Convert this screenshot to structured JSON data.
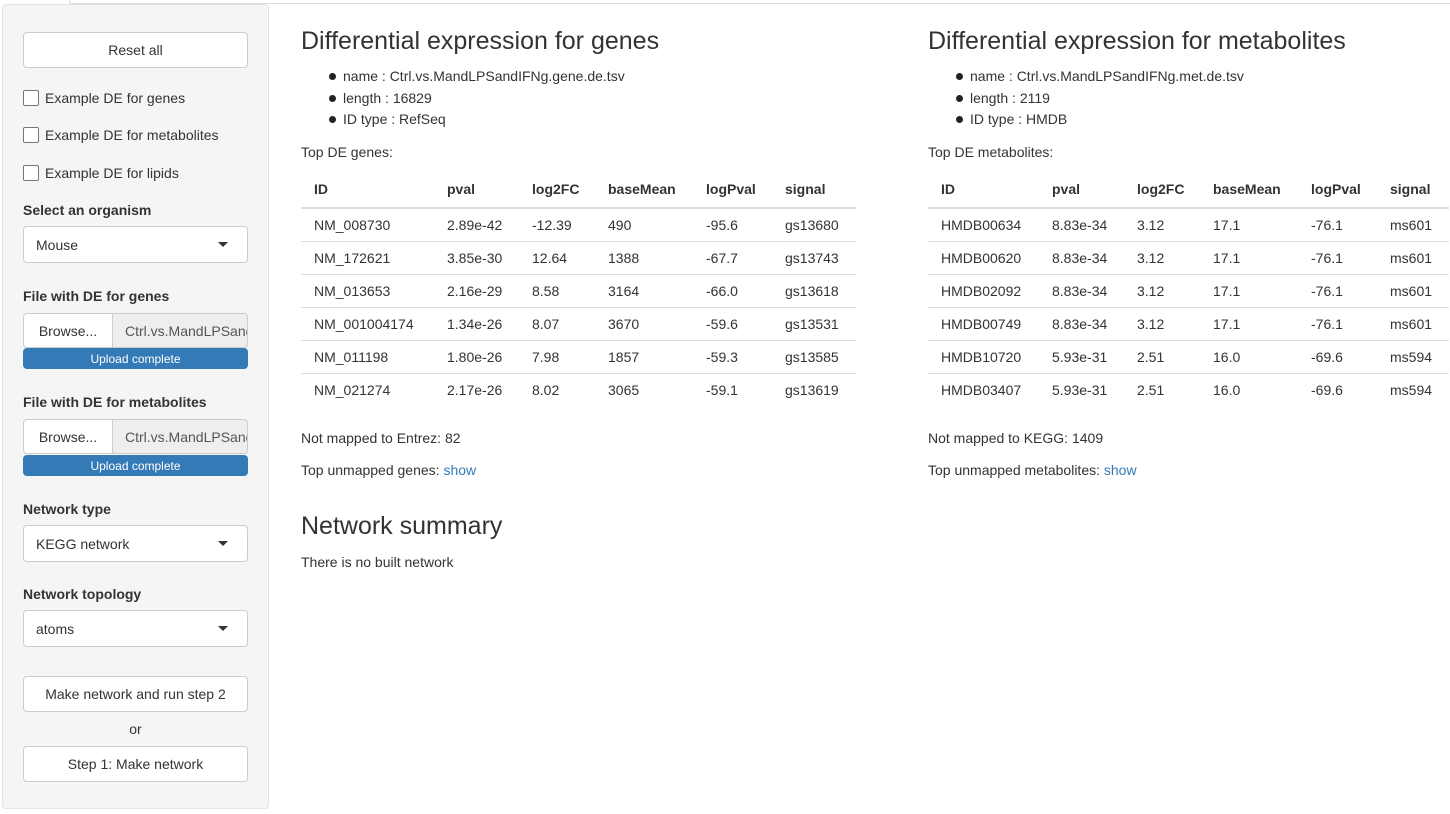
{
  "sidebar": {
    "reset_label": "Reset all",
    "examples": [
      {
        "label": "Example DE for genes",
        "checked": false
      },
      {
        "label": "Example DE for metabolites",
        "checked": false
      },
      {
        "label": "Example DE for lipids",
        "checked": false
      }
    ],
    "organism": {
      "label": "Select an organism",
      "value": "Mouse"
    },
    "genes_file": {
      "label": "File with DE for genes",
      "browse": "Browse...",
      "filename": "Ctrl.vs.MandLPSandIFNg.gene.de.tsv",
      "progress": "Upload complete"
    },
    "metabolites_file": {
      "label": "File with DE for metabolites",
      "browse": "Browse...",
      "filename": "Ctrl.vs.MandLPSandIFNg.met.de.tsv",
      "progress": "Upload complete"
    },
    "network_type": {
      "label": "Network type",
      "value": "KEGG network"
    },
    "network_topology": {
      "label": "Network topology",
      "value": "atoms"
    },
    "run_step2_label": "Make network and run step 2",
    "or_label": "or",
    "step1_label": "Step 1: Make network"
  },
  "genes": {
    "title": "Differential expression for genes",
    "info": [
      "name : Ctrl.vs.MandLPSandIFNg.gene.de.tsv",
      "length : 16829",
      "ID type : RefSeq"
    ],
    "top_label": "Top DE genes:",
    "columns": [
      "ID",
      "pval",
      "log2FC",
      "baseMean",
      "logPval",
      "signal"
    ],
    "rows": [
      [
        "NM_008730",
        "2.89e-42",
        "-12.39",
        "490",
        "-95.6",
        "gs13680"
      ],
      [
        "NM_172621",
        "3.85e-30",
        "12.64",
        "1388",
        "-67.7",
        "gs13743"
      ],
      [
        "NM_013653",
        "2.16e-29",
        "8.58",
        "3164",
        "-66.0",
        "gs13618"
      ],
      [
        "NM_001004174",
        "1.34e-26",
        "8.07",
        "3670",
        "-59.6",
        "gs13531"
      ],
      [
        "NM_011198",
        "1.80e-26",
        "7.98",
        "1857",
        "-59.3",
        "gs13585"
      ],
      [
        "NM_021274",
        "2.17e-26",
        "8.02",
        "3065",
        "-59.1",
        "gs13619"
      ]
    ],
    "not_mapped": "Not mapped to Entrez: 82",
    "unmapped_label": "Top unmapped genes: ",
    "show_label": "show"
  },
  "metabolites": {
    "title": "Differential expression for metabolites",
    "info": [
      "name : Ctrl.vs.MandLPSandIFNg.met.de.tsv",
      "length : 2119",
      "ID type : HMDB"
    ],
    "top_label": "Top DE metabolites:",
    "columns": [
      "ID",
      "pval",
      "log2FC",
      "baseMean",
      "logPval",
      "signal"
    ],
    "rows": [
      [
        "HMDB00634",
        "8.83e-34",
        "3.12",
        "17.1",
        "-76.1",
        "ms601"
      ],
      [
        "HMDB00620",
        "8.83e-34",
        "3.12",
        "17.1",
        "-76.1",
        "ms601"
      ],
      [
        "HMDB02092",
        "8.83e-34",
        "3.12",
        "17.1",
        "-76.1",
        "ms601"
      ],
      [
        "HMDB00749",
        "8.83e-34",
        "3.12",
        "17.1",
        "-76.1",
        "ms601"
      ],
      [
        "HMDB10720",
        "5.93e-31",
        "2.51",
        "16.0",
        "-69.6",
        "ms594"
      ],
      [
        "HMDB03407",
        "5.93e-31",
        "2.51",
        "16.0",
        "-69.6",
        "ms594"
      ]
    ],
    "not_mapped": "Not mapped to KEGG: 1409",
    "unmapped_label": "Top unmapped metabolites: ",
    "show_label": "show"
  },
  "network": {
    "title": "Network summary",
    "status": "There is no built network"
  },
  "colors": {
    "accent": "#337ab7",
    "sidebar_bg": "#f5f5f5"
  },
  "icons": {
    "dropdown": "caret-down-icon",
    "checkbox": "checkbox-icon"
  }
}
